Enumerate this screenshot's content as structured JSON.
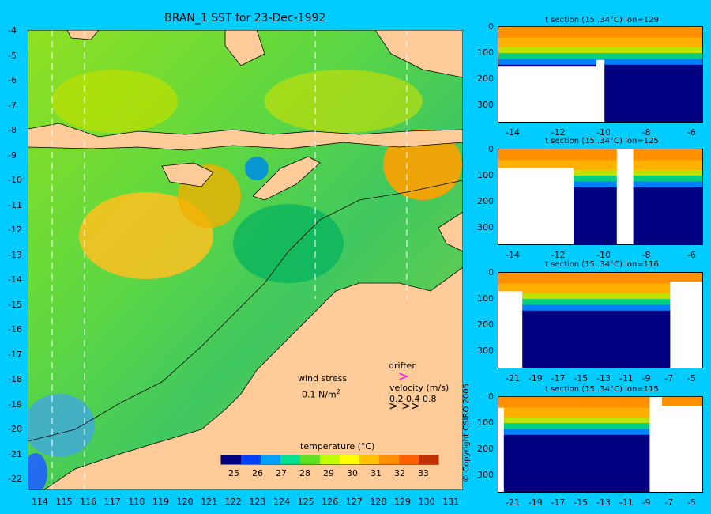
{
  "main_map": {
    "title": "BRAN_1 SST for 23-Dec-1992",
    "lat_ticks": [
      "-4",
      "-5",
      "-6",
      "-7",
      "-8",
      "-9",
      "-10",
      "-11",
      "-12",
      "-13",
      "-14",
      "-15",
      "-16",
      "-17",
      "-18",
      "-19",
      "-20",
      "-21",
      "-22"
    ],
    "lon_ticks": [
      "114",
      "115",
      "116",
      "117",
      "118",
      "119",
      "120",
      "121",
      "122",
      "123",
      "124",
      "125",
      "126",
      "127",
      "128",
      "129",
      "130",
      "131"
    ],
    "wind_stress_label": "wind stress",
    "wind_stress_scale": "0.1 N/m",
    "wind_stress_scale_sup": "2",
    "drifter_label": "drifter",
    "velocity_label": "velocity (m/s)",
    "velocity_scale": "0.2 0.4 0.8",
    "colorbar": {
      "label": "temperature (°C)",
      "ticks": [
        "25",
        "26",
        "27",
        "28",
        "29",
        "30",
        "31",
        "32",
        "33"
      ],
      "colors": [
        "#000080",
        "#0040ff",
        "#00a0ff",
        "#00e090",
        "#60e020",
        "#c0ff00",
        "#ffff00",
        "#ffc000",
        "#ff9000",
        "#ff6000",
        "#c03000"
      ]
    }
  },
  "sections": [
    {
      "title": "t section (15..34°C) lon=129",
      "x_ticks": [
        "-14",
        "-12",
        "-10",
        "-8",
        "-6"
      ],
      "y_ticks": [
        "0",
        "100",
        "200",
        "300"
      ]
    },
    {
      "title": "t section (15..34°C) lon=125",
      "x_ticks": [
        "-14",
        "-12",
        "-10",
        "-8",
        "-6"
      ],
      "y_ticks": [
        "0",
        "100",
        "200",
        "300"
      ]
    },
    {
      "title": "t section (15..34°C) lon=116",
      "x_ticks": [
        "-21",
        "-19",
        "-17",
        "-15",
        "-13",
        "-11",
        "-9",
        "-7",
        "-5"
      ],
      "y_ticks": [
        "0",
        "100",
        "200",
        "300"
      ]
    },
    {
      "title": "t section (15..34°C) lon=115",
      "x_ticks": [
        "-21",
        "-19",
        "-17",
        "-15",
        "-13",
        "-11",
        "-9",
        "-7",
        "-5"
      ],
      "y_ticks": [
        "0",
        "100",
        "200",
        "300"
      ]
    }
  ],
  "copyright": "© Copyright CSIRO 2005",
  "colors": {
    "background": "#00ccff",
    "land": "#ffcc99",
    "ocean_warm": "#ffb000",
    "ocean_mid": "#a0e020",
    "ocean_cool": "#00c060"
  }
}
